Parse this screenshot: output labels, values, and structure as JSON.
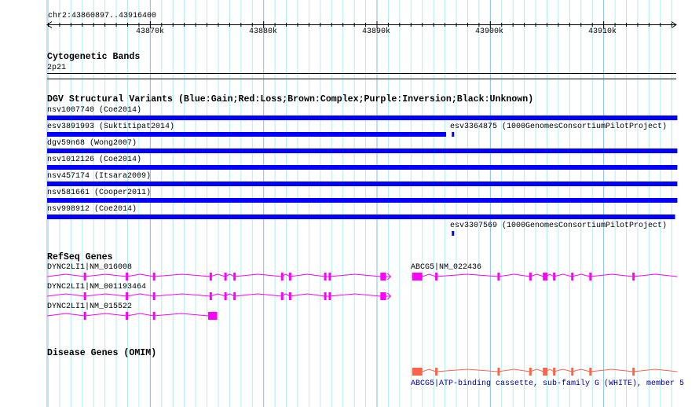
{
  "view": {
    "range_label": "chr2:43860897..43916400",
    "start": 43860897,
    "end": 43916400
  },
  "ruler": {
    "ticks": [
      {
        "label": "43870k",
        "kb": 43870
      },
      {
        "label": "43880k",
        "kb": 43880
      },
      {
        "label": "43890k",
        "kb": 43890
      },
      {
        "label": "43900k",
        "kb": 43900
      },
      {
        "label": "43910k",
        "kb": 43910
      }
    ]
  },
  "cyto": {
    "title": "Cytogenetic Bands",
    "band": "2p21"
  },
  "dgv": {
    "title": "DGV Structural Variants (Blue:Gain;Red:Loss;Brown:Complex;Purple:Inversion;Black:Unknown)",
    "color": "#0000ff",
    "variants": [
      {
        "label": "nsv1007740 (Coe2014)",
        "start": 43860.9,
        "end": 43916.5
      },
      {
        "label": "esv3891993 (Suktitipat2014)",
        "start": 43860.9,
        "end": 43896.1
      },
      {
        "label": "esv3364875 (1000GenomesConsortiumPilotProject)",
        "start": 43896.6,
        "end": 43896.8
      },
      {
        "label": "dgv59n68 (Wong2007)",
        "start": 43860.9,
        "end": 43916.5
      },
      {
        "label": "nsv1012126 (Coe2014)",
        "start": 43860.9,
        "end": 43916.5
      },
      {
        "label": "nsv457174 (Itsara2009)",
        "start": 43860.9,
        "end": 43916.5
      },
      {
        "label": "nsv581661 (Cooper2011)",
        "start": 43860.9,
        "end": 43916.5
      },
      {
        "label": "nsv998912 (Coe2014)",
        "start": 43860.9,
        "end": 43916.3
      },
      {
        "label": "esv3307569 (1000GenomesConsortiumPilotProject)",
        "start": 43896.6,
        "end": 43896.8
      }
    ]
  },
  "refseq": {
    "title": "RefSeq Genes",
    "color": "#ff00ff",
    "genes": [
      {
        "label": "DYNC2LI1|NM_016008",
        "start": 43860.9,
        "end": 43891.2,
        "strand": "+",
        "exons": [
          43864.2,
          43867.9,
          43870.3,
          43875.3,
          43876.6,
          43877.4,
          43881.6,
          43882.3,
          43885.4,
          43885.8
        ],
        "block": [
          43890.3,
          43890.8
        ]
      },
      {
        "label": "DYNC2LI1|NM_001193464",
        "start": 43860.9,
        "end": 43891.2,
        "strand": "+",
        "exons": [
          43864.2,
          43867.9,
          43870.3,
          43875.3,
          43876.6,
          43877.4,
          43881.6,
          43882.3,
          43885.4,
          43885.8
        ],
        "block": [
          43890.3,
          43890.8
        ]
      },
      {
        "label": "DYNC2LI1|NM_015522",
        "start": 43860.9,
        "end": 43875.9,
        "strand": "",
        "exons": [
          43864.2,
          43867.9,
          43870.3
        ],
        "block": [
          43875.1,
          43875.9
        ]
      },
      {
        "label": "ABCG5|NM_022436",
        "start": 43893.1,
        "end": 43916.5,
        "strand": "",
        "exons": [
          43895.2,
          43900.7,
          43903.5,
          43904.7,
          43904.9,
          43905.6,
          43907.2,
          43908.8,
          43912.6
        ],
        "block": [
          43893.1,
          43894.0
        ]
      }
    ]
  },
  "omim": {
    "title": "Disease Genes (OMIM)",
    "color": "#ff6347",
    "gene": {
      "label": "ABCG5|ATP-binding cassette, sub-family G (WHITE), member 5",
      "start": 43893.1,
      "end": 43916.5,
      "exons": [
        43895.2,
        43900.7,
        43903.5,
        43904.7,
        43904.9,
        43905.6,
        43907.2,
        43908.8,
        43912.6
      ],
      "block": [
        43893.1,
        43894.0
      ]
    }
  }
}
